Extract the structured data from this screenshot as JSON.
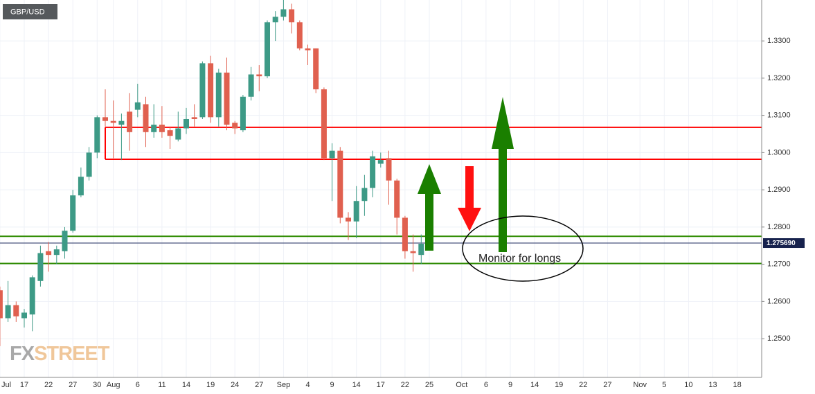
{
  "chart_data": {
    "type": "candlestick",
    "title": "GBP/USD",
    "logo": [
      "FX",
      "STREET"
    ],
    "annotation": "Monitor for longs",
    "categories": [
      "Jul",
      null,
      null,
      "17",
      null,
      null,
      "22",
      null,
      null,
      "27",
      null,
      null,
      "30",
      null,
      "Aug",
      null,
      null,
      "6",
      null,
      null,
      "11",
      null,
      null,
      "14",
      null,
      null,
      "19",
      null,
      null,
      "24",
      null,
      null,
      "27",
      null,
      null,
      "Sep",
      null,
      null,
      "4",
      null,
      null,
      "9",
      null,
      null,
      "14",
      null,
      null,
      "17",
      null,
      null,
      "22",
      null,
      null,
      "25",
      null,
      null,
      null,
      "Oct",
      null,
      null,
      "6",
      null,
      null,
      "9",
      null,
      null,
      "14",
      null,
      null,
      "19",
      null,
      null,
      "22",
      null,
      null,
      "27",
      null,
      null,
      null,
      "Nov",
      null,
      null,
      "5",
      null,
      null,
      "10",
      null,
      null,
      "13",
      null,
      null,
      "18"
    ],
    "open": [
      1.263,
      1.2555,
      1.259,
      1.2555,
      1.2565,
      1.2655,
      1.2735,
      1.2725,
      1.2735,
      1.279,
      1.2885,
      1.2935,
      1.3,
      1.3095,
      1.3085,
      1.3075,
      1.311,
      1.3115,
      1.313,
      1.3055,
      1.3075,
      1.306,
      1.3035,
      1.3065,
      1.3095,
      1.3095,
      1.324,
      1.3095,
      1.3215,
      1.308,
      1.306,
      1.315,
      1.321,
      1.3205,
      1.335,
      1.3365,
      1.3385,
      1.335,
      1.328,
      1.328,
      1.317,
      1.2985,
      1.3005,
      1.2825,
      1.2815,
      1.287,
      1.2905,
      1.297,
      1.2985,
      1.2925,
      1.2825,
      1.2735,
      1.2725,
      null,
      null,
      null,
      null,
      null,
      null,
      null,
      null,
      null,
      null,
      null,
      null,
      null,
      null,
      null,
      null,
      null,
      null,
      null,
      null,
      null,
      null,
      null,
      null,
      null,
      null,
      null,
      null,
      null,
      null,
      null,
      null,
      null,
      null,
      null,
      null,
      null,
      null,
      null
    ],
    "high": [
      1.264,
      1.2655,
      1.26,
      1.258,
      1.267,
      1.275,
      1.276,
      1.275,
      1.28,
      1.29,
      1.296,
      1.3015,
      1.31,
      1.317,
      1.314,
      1.3105,
      1.316,
      1.3185,
      1.315,
      1.313,
      1.3125,
      1.307,
      1.311,
      1.312,
      1.313,
      1.3245,
      1.326,
      1.3225,
      1.3255,
      1.3085,
      1.3155,
      1.323,
      1.3235,
      1.3355,
      1.338,
      1.341,
      1.34,
      1.3355,
      1.329,
      1.328,
      1.3175,
      1.3025,
      1.3015,
      1.284,
      1.291,
      1.294,
      1.3005,
      1.3,
      1.3005,
      1.293,
      1.283,
      1.278,
      1.278,
      null,
      null,
      null,
      null,
      null,
      null,
      null,
      null,
      null,
      null,
      null,
      null,
      null,
      null,
      null,
      null,
      null,
      null,
      null,
      null,
      null,
      null,
      null,
      null,
      null,
      null,
      null,
      null,
      null,
      null,
      null,
      null,
      null,
      null,
      null,
      null,
      null,
      null,
      null
    ],
    "low": [
      1.248,
      1.2545,
      1.2545,
      1.253,
      1.252,
      1.264,
      1.268,
      1.27,
      1.2715,
      1.2785,
      1.288,
      1.2925,
      1.2985,
      1.307,
      1.2985,
      1.298,
      1.3005,
      1.3095,
      1.3015,
      1.304,
      1.304,
      1.301,
      1.303,
      1.305,
      1.307,
      1.309,
      1.308,
      1.307,
      1.306,
      1.305,
      1.3055,
      1.314,
      1.3165,
      1.32,
      1.33,
      1.3355,
      1.332,
      1.3275,
      1.3235,
      1.316,
      1.298,
      1.287,
      1.281,
      1.2765,
      1.277,
      1.283,
      1.288,
      1.296,
      1.286,
      1.278,
      1.2715,
      1.268,
      1.27,
      null,
      null,
      null,
      null,
      null,
      null,
      null,
      null,
      null,
      null,
      null,
      null,
      null,
      null,
      null,
      null,
      null,
      null,
      null,
      null,
      null,
      null,
      null,
      null,
      null,
      null,
      null,
      null,
      null,
      null,
      null,
      null,
      null,
      null,
      null,
      null,
      null,
      null,
      null
    ],
    "close": [
      1.2555,
      1.259,
      1.256,
      1.257,
      1.2665,
      1.273,
      1.2725,
      1.274,
      1.279,
      1.2885,
      1.2935,
      1.3,
      1.3095,
      1.3085,
      1.308,
      1.3085,
      1.3055,
      1.3135,
      1.3055,
      1.3075,
      1.3055,
      1.3045,
      1.3065,
      1.309,
      1.309,
      1.324,
      1.3095,
      1.3215,
      1.3075,
      1.3065,
      1.315,
      1.321,
      1.3205,
      1.335,
      1.3365,
      1.3385,
      1.335,
      1.328,
      1.3275,
      1.317,
      1.2985,
      1.3005,
      1.2825,
      1.2815,
      1.287,
      1.2905,
      1.299,
      1.298,
      1.2925,
      1.2825,
      1.2735,
      1.273,
      1.2755,
      null,
      null,
      null,
      null,
      null,
      null,
      null,
      null,
      null,
      null,
      null,
      null,
      null,
      null,
      null,
      null,
      null,
      null,
      null,
      null,
      null,
      null,
      null,
      null,
      null,
      null,
      null,
      null,
      null,
      null,
      null,
      null,
      null,
      null,
      null,
      null,
      null,
      null,
      null
    ],
    "up_color": "#3d9a86",
    "down_color": "#e0604f",
    "ylim": [
      1.2396,
      1.341
    ],
    "yticks": [
      {
        "value": 1.25,
        "label": "1.2500"
      },
      {
        "value": 1.26,
        "label": "1.2600"
      },
      {
        "value": 1.27,
        "label": "1.2700"
      },
      {
        "value": 1.28,
        "label": "1.2800"
      },
      {
        "value": 1.29,
        "label": "1.2900"
      },
      {
        "value": 1.3,
        "label": "1.3000"
      },
      {
        "value": 1.31,
        "label": "1.3100"
      },
      {
        "value": 1.32,
        "label": "1.3200"
      },
      {
        "value": 1.33,
        "label": "1.3300"
      }
    ],
    "grid": true,
    "last_price": {
      "value": 1.27569,
      "label": "1.275690"
    },
    "resistance_zone": {
      "values": [
        1.2982,
        1.3068
      ],
      "color": "#ff0000"
    },
    "support_lines": {
      "values": [
        1.2702,
        1.2775
      ],
      "color": "#2e8b00"
    }
  }
}
